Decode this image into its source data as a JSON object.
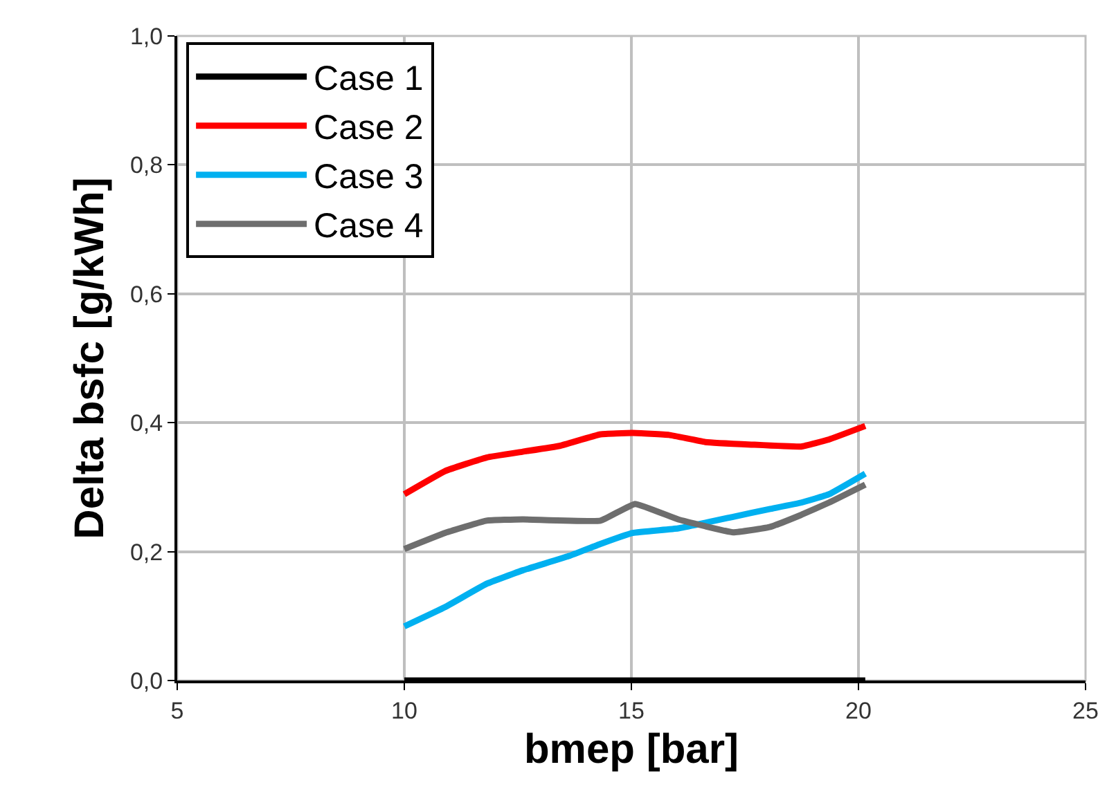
{
  "chart_data": {
    "type": "line",
    "xlabel": "bmep [bar]",
    "ylabel": "Delta bsfc [g/kWh]",
    "xlim": [
      5,
      25
    ],
    "xticks": [
      5,
      10,
      15,
      20,
      25
    ],
    "ylim": [
      0,
      1
    ],
    "yticks": [
      {
        "value": 0,
        "label": "0,0"
      },
      {
        "value": 0.2,
        "label": "0,2"
      },
      {
        "value": 0.4,
        "label": "0,4"
      },
      {
        "value": 0.6,
        "label": "0,6"
      },
      {
        "value": 0.8,
        "label": "0,8"
      },
      {
        "value": 1,
        "label": "1,0"
      }
    ],
    "grid": true,
    "legend": "top left",
    "line_style": "solid",
    "series": [
      {
        "name": "Case 1",
        "color": "#000000",
        "x": [
          10,
          15,
          20.15
        ],
        "values": [
          0,
          0,
          0
        ]
      },
      {
        "name": "Case 2",
        "color": "#ff0000",
        "x": [
          10,
          10.9,
          11.81,
          12.61,
          13.42,
          14.32,
          15.03,
          15.83,
          16.63,
          17.64,
          18.74,
          19.35,
          20.15
        ],
        "values": [
          0.289,
          0.325,
          0.346,
          0.355,
          0.364,
          0.382,
          0.384,
          0.381,
          0.37,
          0.366,
          0.363,
          0.374,
          0.395
        ]
      },
      {
        "name": "Case 3",
        "color": "#00b0f0",
        "x": [
          10,
          10.9,
          11.81,
          12.61,
          13.62,
          14.32,
          15.03,
          16.03,
          17.24,
          18.04,
          18.74,
          19.35,
          20.15
        ],
        "values": [
          0.084,
          0.114,
          0.15,
          0.171,
          0.193,
          0.212,
          0.229,
          0.236,
          0.254,
          0.266,
          0.276,
          0.289,
          0.321
        ]
      },
      {
        "name": "Case 4",
        "color": "#6e6e6e",
        "x": [
          10,
          10.9,
          11.81,
          12.61,
          14.32,
          15.08,
          16.03,
          17.24,
          18.04,
          18.74,
          19.35,
          20.15
        ],
        "values": [
          0.204,
          0.229,
          0.248,
          0.25,
          0.248,
          0.274,
          0.25,
          0.23,
          0.238,
          0.257,
          0.276,
          0.304
        ]
      }
    ]
  }
}
